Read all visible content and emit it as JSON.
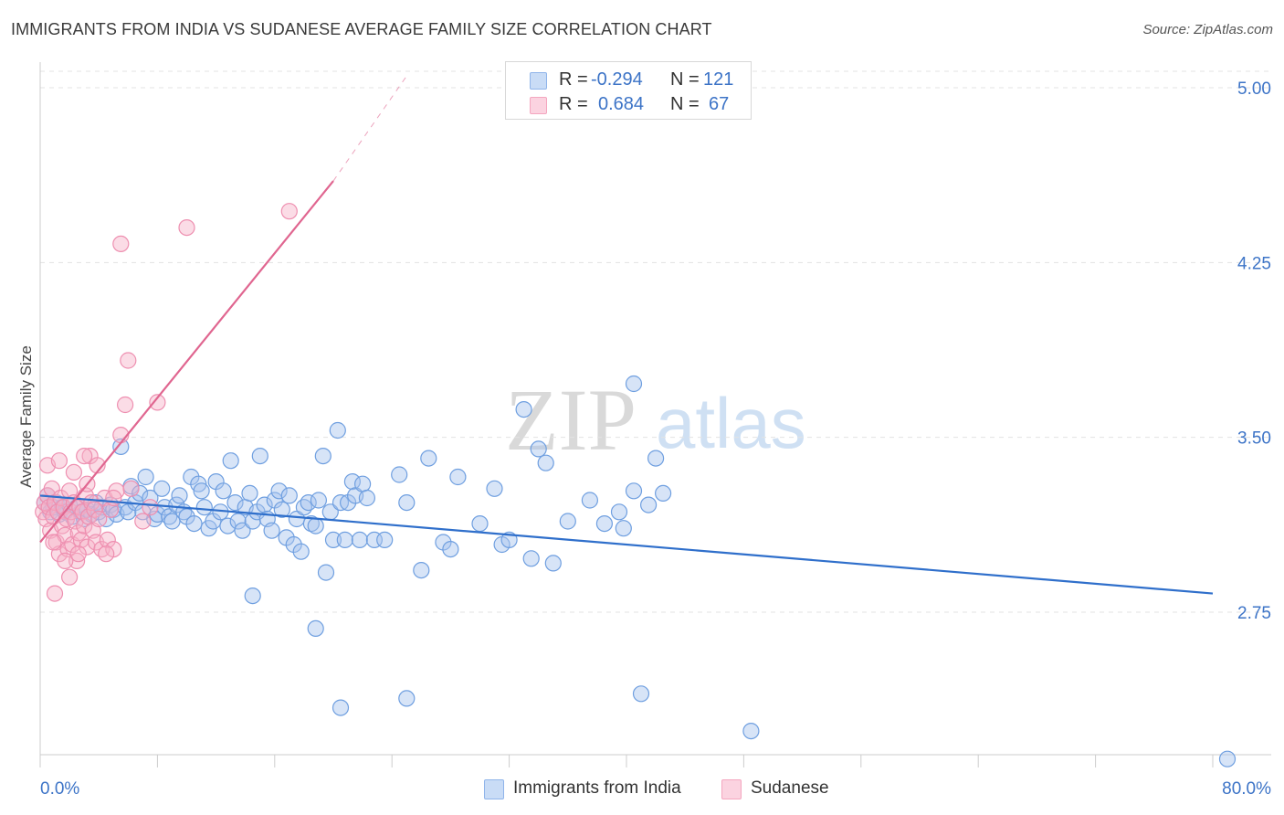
{
  "header": {
    "title": "IMMIGRANTS FROM INDIA VS SUDANESE AVERAGE FAMILY SIZE CORRELATION CHART",
    "source": "Source: ZipAtlas.com"
  },
  "legend": {
    "rows": [
      {
        "r_label": "R =",
        "r_value": "-0.294",
        "n_label": "N =",
        "n_value": "121",
        "color": "#8fb4ea"
      },
      {
        "r_label": "R =",
        "r_value": "0.684",
        "n_label": "N =",
        "n_value": "67",
        "color": "#f4a6bf"
      }
    ]
  },
  "bottom_legend": {
    "items": [
      {
        "label": "Immigrants from India",
        "color": "#8fb4ea"
      },
      {
        "label": "Sudanese",
        "color": "#f4a6bf"
      }
    ]
  },
  "watermark": {
    "zip": "ZIP",
    "atlas": "atlas"
  },
  "chart_data": {
    "type": "scatter",
    "title": "IMMIGRANTS FROM INDIA VS SUDANESE AVERAGE FAMILY SIZE CORRELATION CHART",
    "ylabel": "Average Family Size",
    "xlabel": "",
    "xlim": [
      0,
      80
    ],
    "ylim": [
      2.1,
      5.1
    ],
    "x_tick_labels": [
      "0.0%",
      "80.0%"
    ],
    "y_ticks": [
      2.75,
      3.5,
      4.25,
      5.0
    ],
    "y_tick_labels": [
      "2.75",
      "3.50",
      "4.25",
      "5.00"
    ],
    "grid": "horizontal dashed",
    "series": [
      {
        "name": "Immigrants from India",
        "color": "#8fb4ea",
        "line_color": "#2f6fcb",
        "trend": {
          "x0": 0,
          "y0": 3.25,
          "x1": 80,
          "y1": 2.83
        },
        "points": [
          [
            0.3,
            3.22
          ],
          [
            0.5,
            3.25
          ],
          [
            0.7,
            3.18
          ],
          [
            0.9,
            3.2
          ],
          [
            1.1,
            3.22
          ],
          [
            1.3,
            3.17
          ],
          [
            1.5,
            3.2
          ],
          [
            1.7,
            3.18
          ],
          [
            2.0,
            3.21
          ],
          [
            2.2,
            3.16
          ],
          [
            2.5,
            3.2
          ],
          [
            2.8,
            3.18
          ],
          [
            3.0,
            3.15
          ],
          [
            3.2,
            3.19
          ],
          [
            3.5,
            3.17
          ],
          [
            3.8,
            3.22
          ],
          [
            4.0,
            3.18
          ],
          [
            4.2,
            3.2
          ],
          [
            4.5,
            3.15
          ],
          [
            4.8,
            3.21
          ],
          [
            5.0,
            3.19
          ],
          [
            5.2,
            3.17
          ],
          [
            5.5,
            3.46
          ],
          [
            5.8,
            3.2
          ],
          [
            6.0,
            3.18
          ],
          [
            6.2,
            3.29
          ],
          [
            6.5,
            3.22
          ],
          [
            6.8,
            3.26
          ],
          [
            7.0,
            3.18
          ],
          [
            7.2,
            3.33
          ],
          [
            7.5,
            3.24
          ],
          [
            7.8,
            3.15
          ],
          [
            8.0,
            3.17
          ],
          [
            8.3,
            3.28
          ],
          [
            8.5,
            3.2
          ],
          [
            8.8,
            3.16
          ],
          [
            9.0,
            3.14
          ],
          [
            9.3,
            3.21
          ],
          [
            9.5,
            3.25
          ],
          [
            9.8,
            3.18
          ],
          [
            10.0,
            3.16
          ],
          [
            10.3,
            3.33
          ],
          [
            10.5,
            3.13
          ],
          [
            10.8,
            3.3
          ],
          [
            11.0,
            3.27
          ],
          [
            11.2,
            3.2
          ],
          [
            11.5,
            3.11
          ],
          [
            11.8,
            3.14
          ],
          [
            12.0,
            3.31
          ],
          [
            12.3,
            3.18
          ],
          [
            12.5,
            3.27
          ],
          [
            12.8,
            3.12
          ],
          [
            13.0,
            3.4
          ],
          [
            13.3,
            3.22
          ],
          [
            13.5,
            3.14
          ],
          [
            13.8,
            3.1
          ],
          [
            14.0,
            3.2
          ],
          [
            14.3,
            3.26
          ],
          [
            14.5,
            3.14
          ],
          [
            14.8,
            3.18
          ],
          [
            15.0,
            3.42
          ],
          [
            15.3,
            3.21
          ],
          [
            15.5,
            3.15
          ],
          [
            15.8,
            3.1
          ],
          [
            16.0,
            3.23
          ],
          [
            16.3,
            3.27
          ],
          [
            16.5,
            3.19
          ],
          [
            16.8,
            3.07
          ],
          [
            17.0,
            3.25
          ],
          [
            17.3,
            3.04
          ],
          [
            17.5,
            3.15
          ],
          [
            17.8,
            3.01
          ],
          [
            18.0,
            3.2
          ],
          [
            18.3,
            3.22
          ],
          [
            18.5,
            3.13
          ],
          [
            18.8,
            3.12
          ],
          [
            19.0,
            3.23
          ],
          [
            19.3,
            3.42
          ],
          [
            19.5,
            2.92
          ],
          [
            19.8,
            3.18
          ],
          [
            20.0,
            3.06
          ],
          [
            20.3,
            3.53
          ],
          [
            20.5,
            3.22
          ],
          [
            20.8,
            3.06
          ],
          [
            21.0,
            3.22
          ],
          [
            21.3,
            3.31
          ],
          [
            21.5,
            3.25
          ],
          [
            21.8,
            3.06
          ],
          [
            22.0,
            3.3
          ],
          [
            22.3,
            3.24
          ],
          [
            22.8,
            3.06
          ],
          [
            23.5,
            3.06
          ],
          [
            24.5,
            3.34
          ],
          [
            25.0,
            3.22
          ],
          [
            26.0,
            2.93
          ],
          [
            26.5,
            3.41
          ],
          [
            27.5,
            3.05
          ],
          [
            28.0,
            3.02
          ],
          [
            28.5,
            3.33
          ],
          [
            30.0,
            3.13
          ],
          [
            31.0,
            3.28
          ],
          [
            31.5,
            3.04
          ],
          [
            32.0,
            3.06
          ],
          [
            33.5,
            2.98
          ],
          [
            34.0,
            3.45
          ],
          [
            34.5,
            3.39
          ],
          [
            35.0,
            2.96
          ],
          [
            36.0,
            3.14
          ],
          [
            37.5,
            3.23
          ],
          [
            38.5,
            3.13
          ],
          [
            39.5,
            3.18
          ],
          [
            39.8,
            3.11
          ],
          [
            40.5,
            3.27
          ],
          [
            41.5,
            3.21
          ],
          [
            42.0,
            3.41
          ],
          [
            42.5,
            3.26
          ],
          [
            48.5,
            2.24
          ],
          [
            81.0,
            2.12
          ],
          [
            14.5,
            2.82
          ],
          [
            18.8,
            2.68
          ],
          [
            20.5,
            2.34
          ],
          [
            25.0,
            2.38
          ],
          [
            41.0,
            2.4
          ],
          [
            40.5,
            3.73
          ],
          [
            33.0,
            3.62
          ]
        ]
      },
      {
        "name": "Sudanese",
        "color": "#f4a6bf",
        "line_color": "#e06690",
        "trend": {
          "x0": 0,
          "y0": 3.05,
          "x1": 20,
          "y1": 4.6
        },
        "trend_dashed_to": {
          "x": 25,
          "y": 5.05
        },
        "points": [
          [
            0.2,
            3.18
          ],
          [
            0.3,
            3.22
          ],
          [
            0.4,
            3.15
          ],
          [
            0.5,
            3.25
          ],
          [
            0.6,
            3.2
          ],
          [
            0.7,
            3.1
          ],
          [
            0.8,
            3.28
          ],
          [
            0.9,
            3.16
          ],
          [
            1.0,
            3.22
          ],
          [
            1.1,
            3.05
          ],
          [
            1.2,
            3.18
          ],
          [
            1.3,
            3.0
          ],
          [
            1.4,
            3.24
          ],
          [
            1.5,
            3.12
          ],
          [
            1.6,
            3.2
          ],
          [
            1.7,
            3.08
          ],
          [
            1.8,
            3.15
          ],
          [
            1.9,
            3.02
          ],
          [
            2.0,
            3.27
          ],
          [
            2.1,
            3.18
          ],
          [
            2.2,
            3.04
          ],
          [
            2.3,
            3.22
          ],
          [
            2.4,
            3.14
          ],
          [
            2.5,
            2.97
          ],
          [
            2.6,
            3.09
          ],
          [
            2.7,
            3.2
          ],
          [
            2.8,
            3.06
          ],
          [
            2.9,
            3.18
          ],
          [
            3.0,
            3.12
          ],
          [
            3.1,
            3.25
          ],
          [
            3.2,
            3.03
          ],
          [
            3.3,
            3.16
          ],
          [
            3.4,
            3.42
          ],
          [
            3.5,
            3.22
          ],
          [
            3.6,
            3.1
          ],
          [
            3.7,
            3.19
          ],
          [
            3.8,
            3.05
          ],
          [
            3.9,
            3.38
          ],
          [
            4.0,
            3.15
          ],
          [
            4.2,
            3.02
          ],
          [
            4.4,
            3.24
          ],
          [
            4.6,
            3.06
          ],
          [
            4.8,
            3.19
          ],
          [
            5.0,
            3.02
          ],
          [
            5.2,
            3.27
          ],
          [
            5.5,
            3.51
          ],
          [
            5.8,
            3.64
          ],
          [
            6.0,
            3.83
          ],
          [
            0.5,
            3.38
          ],
          [
            1.0,
            2.83
          ],
          [
            1.3,
            3.4
          ],
          [
            2.0,
            2.9
          ],
          [
            2.3,
            3.35
          ],
          [
            3.0,
            3.42
          ],
          [
            3.2,
            3.3
          ],
          [
            4.5,
            3.0
          ],
          [
            5.5,
            4.33
          ],
          [
            7.0,
            3.14
          ],
          [
            7.5,
            3.2
          ],
          [
            8.0,
            3.65
          ],
          [
            10.0,
            4.4
          ],
          [
            17.0,
            4.47
          ],
          [
            5.0,
            3.24
          ],
          [
            6.2,
            3.28
          ],
          [
            1.7,
            2.97
          ],
          [
            2.6,
            3.0
          ],
          [
            0.9,
            3.05
          ]
        ]
      }
    ]
  }
}
